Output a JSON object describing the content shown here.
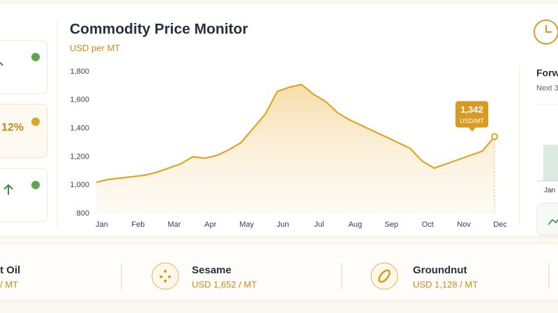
{
  "chart_data": {
    "type": "line",
    "title": "Commodity Price Monitor",
    "subtitle": "USD per MT",
    "categories": [
      "Jan",
      null,
      null,
      "Feb",
      null,
      null,
      "Mar",
      null,
      null,
      "Apr",
      null,
      null,
      "May",
      null,
      null,
      "Jun",
      null,
      null,
      "Jul",
      null,
      null,
      "Aug",
      null,
      null,
      "Sep",
      null,
      null,
      "Oct",
      null,
      null,
      "Nov",
      null,
      null,
      "Dec"
    ],
    "series": [
      {
        "color": "#e0a526",
        "values": [
          1020,
          1040,
          1050,
          1060,
          1070,
          1090,
          1120,
          1150,
          1200,
          1190,
          1210,
          1250,
          1300,
          1400,
          1500,
          1660,
          1690,
          1710,
          1640,
          1590,
          1510,
          1460,
          1420,
          1380,
          1340,
          1300,
          1260,
          1170,
          1120,
          1150,
          1180,
          1210,
          1240,
          1342
        ],
        "value_labels": [
          null,
          null,
          null,
          null,
          null,
          null,
          null,
          null,
          null,
          null,
          null,
          null,
          null,
          null,
          null,
          null,
          null,
          null,
          null,
          null,
          null,
          null,
          null,
          null,
          null,
          null,
          null,
          null,
          null,
          null,
          null,
          null,
          null,
          "1,342"
        ]
      }
    ],
    "value_unit": "USD/MT",
    "ylim": [
      800,
      1800
    ],
    "yticks": [
      800,
      {
        "value": 1000,
        "label": "1,000"
      },
      {
        "value": 1200,
        "label": "1,200"
      },
      {
        "value": 1400,
        "label": "1,400"
      },
      {
        "value": 1600,
        "label": "1,600"
      },
      {
        "value": 1800,
        "label": "1,800"
      }
    ],
    "grid": false
  },
  "left_cards": {
    "change": "12%"
  },
  "forward_panel": {
    "title": "Forw",
    "subtitle": "Next 3",
    "month": "Jan"
  },
  "commodities": [
    {
      "name": "t Oil",
      "price": "/ MT"
    },
    {
      "name": "Sesame",
      "price": "USD 1,652 / MT"
    },
    {
      "name": "Groundnut",
      "price": "USD 1,128 / MT"
    }
  ]
}
